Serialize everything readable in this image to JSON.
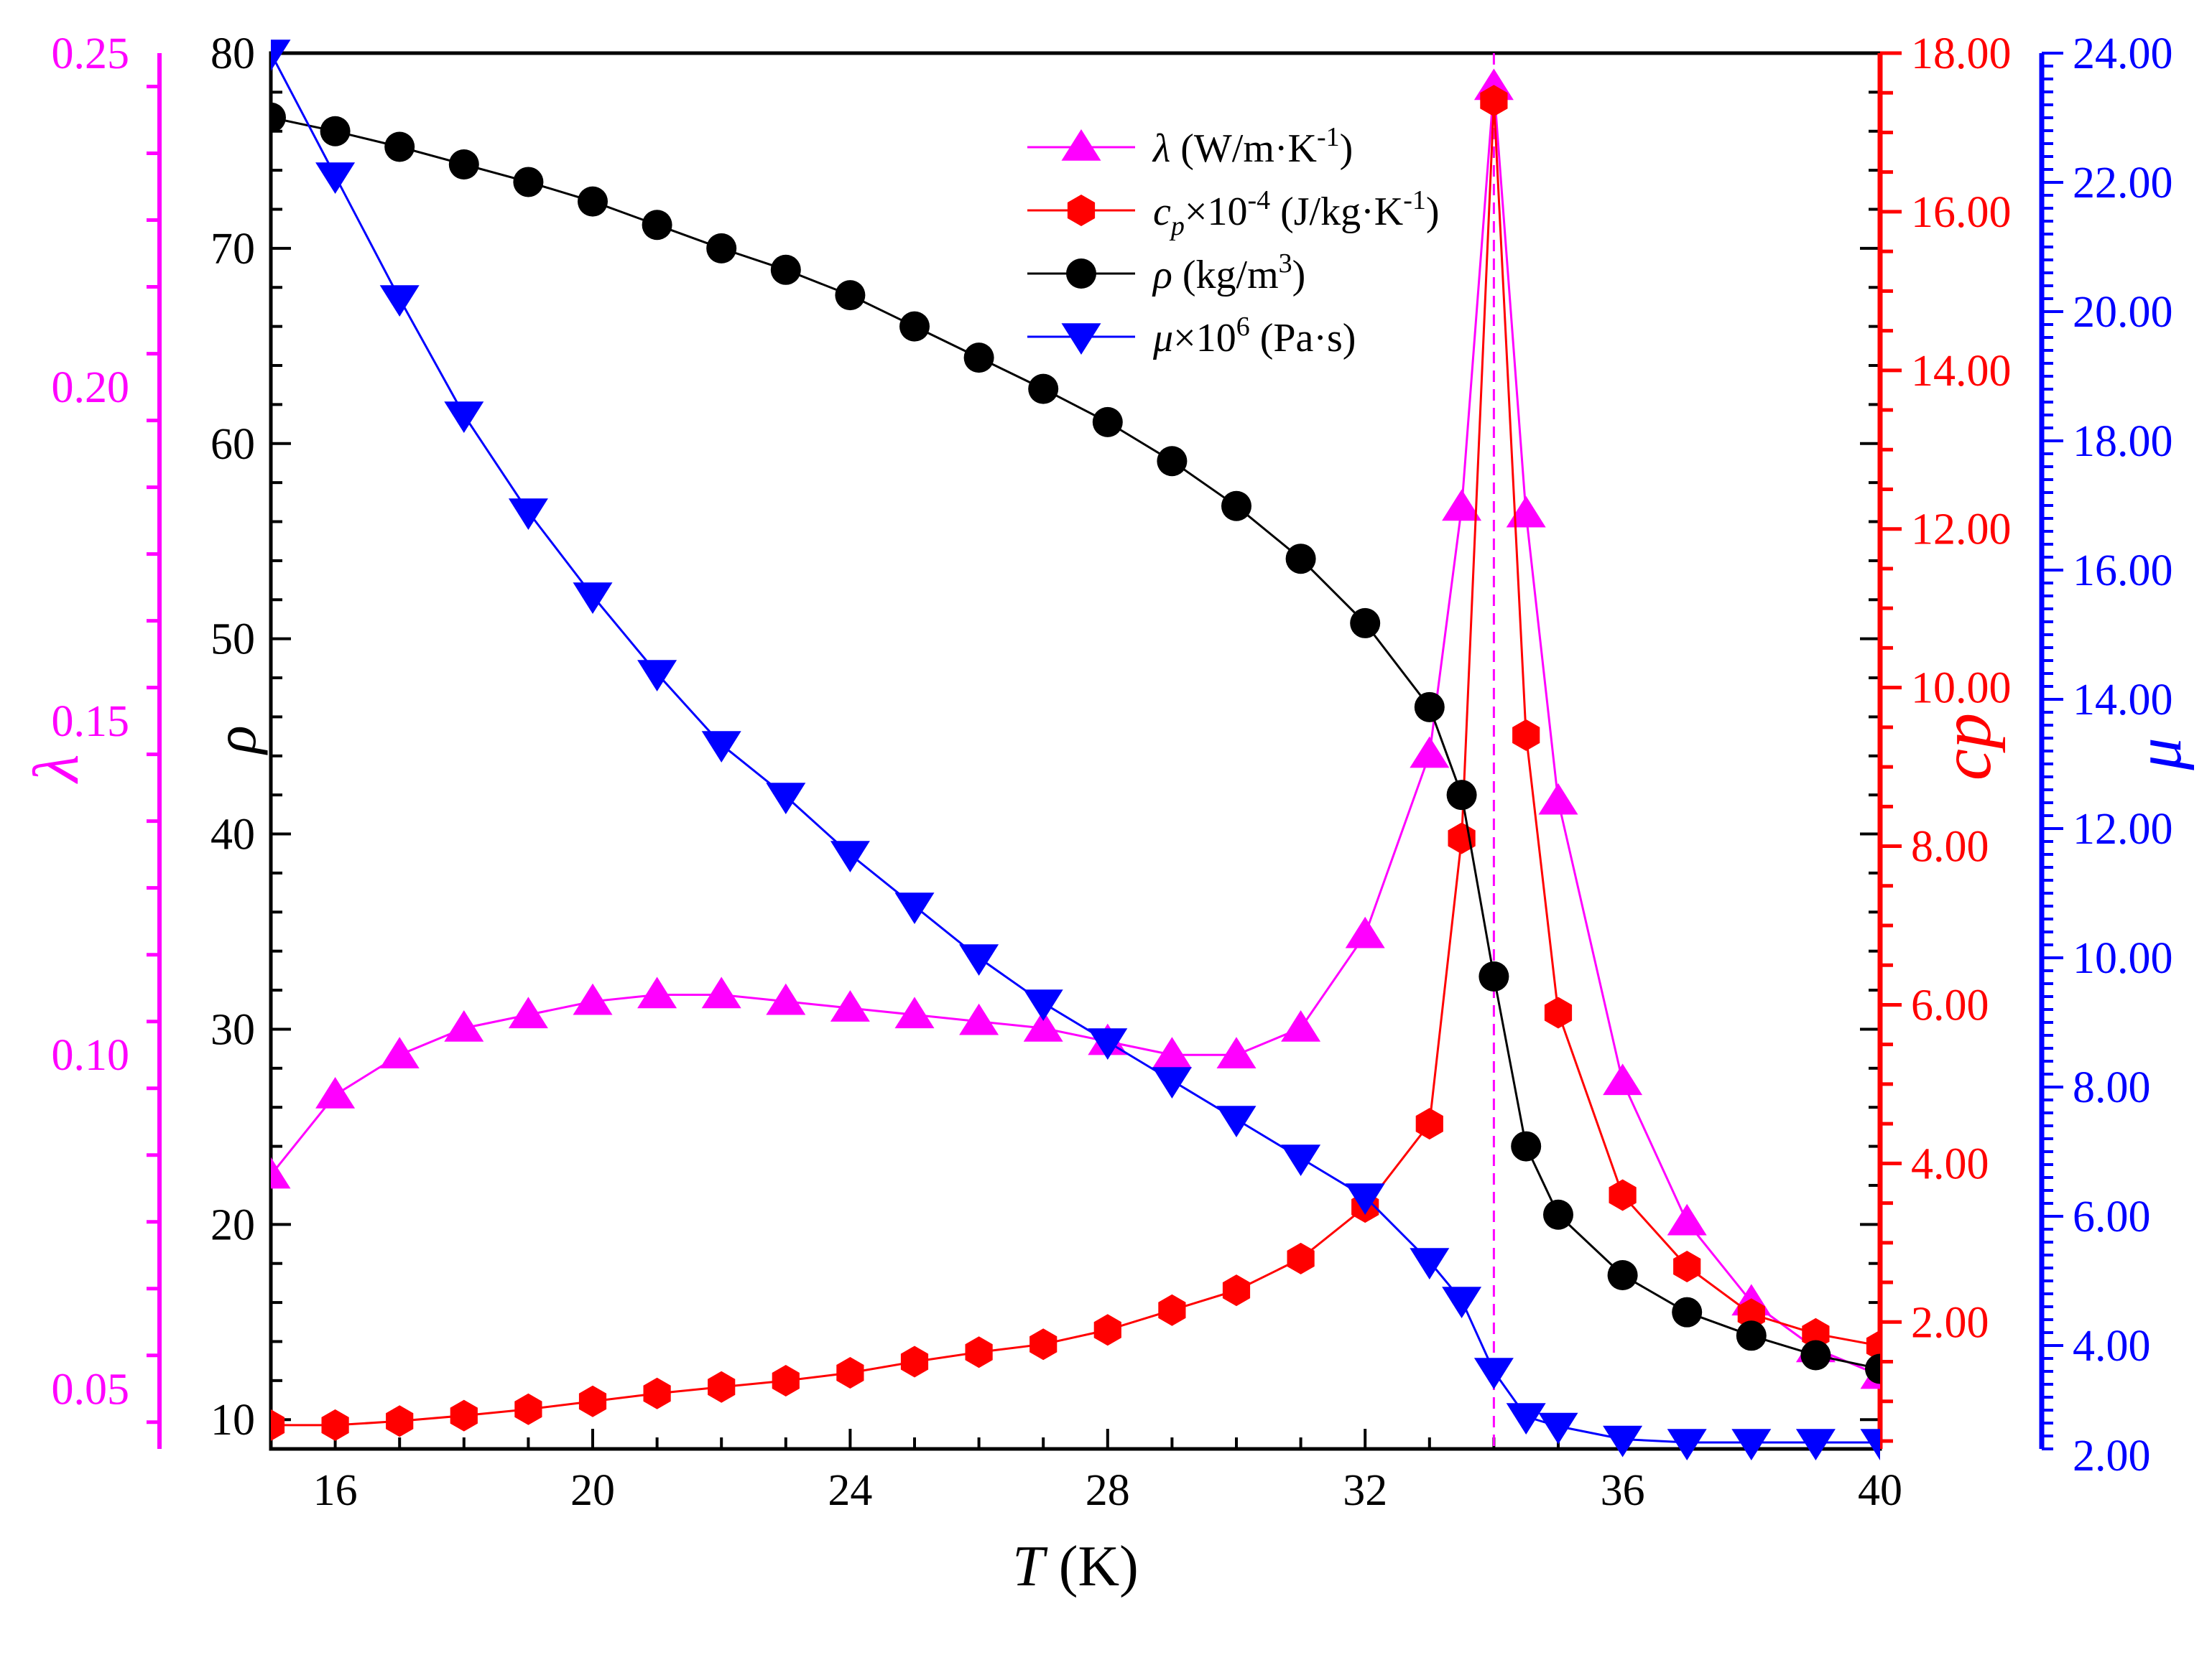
{
  "chart_data": {
    "type": "line",
    "x": [
      15,
      16,
      17,
      18,
      19,
      20,
      21,
      22,
      23,
      24,
      25,
      26,
      27,
      28,
      29,
      30,
      31,
      32,
      33,
      33.5,
      34,
      34.5,
      35,
      36,
      37,
      38,
      39,
      40
    ],
    "xlabel_italic": "T",
    "xlabel_unit": " (K)",
    "xlim": [
      15,
      40
    ],
    "xticks": [
      "16",
      "20",
      "24",
      "28",
      "32",
      "36",
      "40"
    ],
    "critical_temperature": 34,
    "axes": {
      "rho": {
        "label": "ρ",
        "ylim": [
          8.5,
          80
        ],
        "ticks": [
          "10",
          "20",
          "30",
          "40",
          "50",
          "60",
          "70",
          "80"
        ],
        "color": "#000000"
      },
      "lambda": {
        "label": "λ",
        "ylim": [
          0.041,
          0.25
        ],
        "ticks": [
          "0.05",
          "0.10",
          "0.15",
          "0.20",
          "0.25"
        ],
        "color": "#ff00ff"
      },
      "cp": {
        "label_main": "c",
        "label_sub": "p",
        "ylim": [
          0.4,
          18
        ],
        "ticks": [
          "2.00",
          "4.00",
          "6.00",
          "8.00",
          "10.00",
          "12.00",
          "14.00",
          "16.00",
          "18.00"
        ],
        "color": "#ff0000"
      },
      "mu": {
        "label": "μ",
        "ylim": [
          2.4,
          24
        ],
        "ticks": [
          "2.00",
          "4.00",
          "6.00",
          "8.00",
          "10.00",
          "12.00",
          "14.00",
          "16.00",
          "18.00",
          "20.00",
          "22.00",
          "24.00"
        ],
        "color": "#0000ff"
      }
    },
    "series": [
      {
        "key": "lambda",
        "axis": "lambda",
        "marker": "triangle-up",
        "color": "#ff00ff",
        "legend_parts": [
          [
            "it",
            "λ"
          ],
          [
            "n",
            "  (W/m·K"
          ],
          [
            "sup",
            "-1"
          ],
          [
            "n",
            ")"
          ]
        ],
        "values": [
          0.082,
          0.094,
          0.1,
          0.104,
          0.106,
          0.108,
          0.109,
          0.109,
          0.108,
          0.107,
          0.106,
          0.105,
          0.104,
          0.102,
          0.1,
          0.1,
          0.104,
          0.118,
          0.145,
          0.182,
          0.245,
          0.181,
          0.138,
          0.096,
          0.075,
          0.063,
          0.056,
          0.052
        ]
      },
      {
        "key": "cp",
        "axis": "cp",
        "marker": "hexagon",
        "color": "#ff0000",
        "legend_parts": [
          [
            "it",
            "c"
          ],
          [
            "itsub",
            "p"
          ],
          [
            "n",
            "×10"
          ],
          [
            "sup",
            "-4"
          ],
          [
            "n",
            " (J/kg·K"
          ],
          [
            "sup",
            "-1"
          ],
          [
            "n",
            ")"
          ]
        ],
        "values": [
          0.7,
          0.7,
          0.75,
          0.82,
          0.9,
          1.0,
          1.1,
          1.18,
          1.26,
          1.36,
          1.5,
          1.62,
          1.72,
          1.9,
          2.15,
          2.4,
          2.8,
          3.45,
          4.5,
          8.1,
          17.4,
          9.4,
          5.9,
          3.6,
          2.7,
          2.1,
          1.85,
          1.7
        ]
      },
      {
        "key": "rho",
        "axis": "rho",
        "marker": "circle",
        "color": "#000000",
        "legend_parts": [
          [
            "it",
            "ρ"
          ],
          [
            "n",
            "  (kg/m"
          ],
          [
            "sup",
            "3"
          ],
          [
            "n",
            ")"
          ]
        ],
        "values": [
          76.7,
          76.0,
          75.2,
          74.3,
          73.4,
          72.4,
          71.2,
          70.0,
          68.9,
          67.6,
          66.0,
          64.4,
          62.8,
          61.1,
          59.1,
          56.8,
          54.1,
          50.8,
          46.5,
          42.0,
          32.7,
          24.0,
          20.5,
          17.4,
          15.5,
          14.3,
          13.3,
          12.6
        ]
      },
      {
        "key": "mu",
        "axis": "mu",
        "marker": "triangle-down",
        "color": "#0000ff",
        "legend_parts": [
          [
            "it",
            "μ"
          ],
          [
            "n",
            "×10"
          ],
          [
            "sup",
            "6"
          ],
          [
            "n",
            "  (Pa·s)"
          ]
        ],
        "values": [
          24.0,
          22.1,
          20.2,
          18.4,
          16.9,
          15.6,
          14.4,
          13.3,
          12.5,
          11.6,
          10.8,
          10.0,
          9.3,
          8.7,
          8.1,
          7.5,
          6.9,
          6.3,
          5.3,
          4.7,
          3.6,
          2.9,
          2.75,
          2.55,
          2.5,
          2.5,
          2.5,
          2.5
        ]
      }
    ]
  }
}
